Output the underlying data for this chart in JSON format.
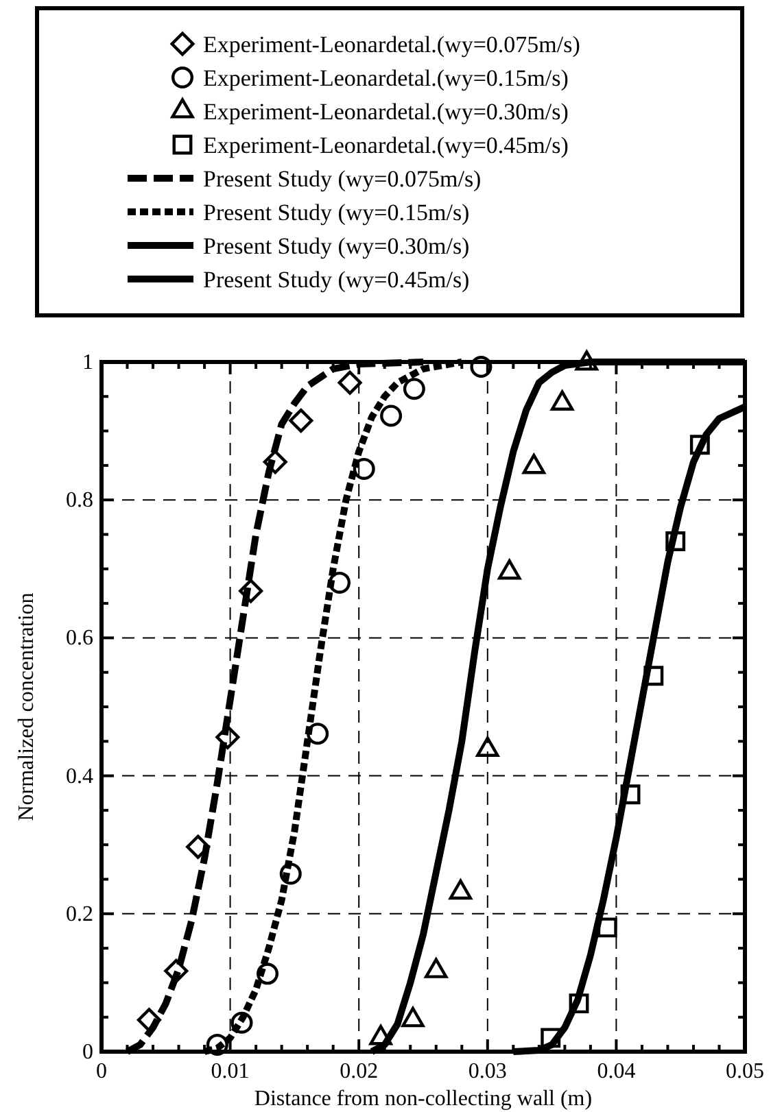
{
  "chart_data": {
    "type": "scatter",
    "xlabel": "Distance from non-collecting wall (m)",
    "ylabel": "Normalized concentration",
    "xlim": [
      0,
      0.05
    ],
    "ylim": [
      0,
      1
    ],
    "xticks": [
      0,
      {
        "value": 0.002,
        "label": null
      },
      {
        "value": 0.004,
        "label": null
      },
      {
        "value": 0.006,
        "label": null
      },
      {
        "value": 0.008,
        "label": null
      },
      0.01,
      {
        "value": 0.012,
        "label": null
      },
      {
        "value": 0.014,
        "label": null
      },
      {
        "value": 0.016,
        "label": null
      },
      {
        "value": 0.018,
        "label": null
      },
      0.02,
      {
        "value": 0.022,
        "label": null
      },
      {
        "value": 0.024,
        "label": null
      },
      {
        "value": 0.026,
        "label": null
      },
      {
        "value": 0.028,
        "label": null
      },
      0.03,
      {
        "value": 0.032,
        "label": null
      },
      {
        "value": 0.034,
        "label": null
      },
      {
        "value": 0.036,
        "label": null
      },
      {
        "value": 0.038,
        "label": null
      },
      0.04,
      {
        "value": 0.042,
        "label": null
      },
      {
        "value": 0.044,
        "label": null
      },
      {
        "value": 0.046,
        "label": null
      },
      {
        "value": 0.048,
        "label": null
      },
      0.05
    ],
    "yticks": [
      0,
      {
        "value": 0.05,
        "label": null
      },
      {
        "value": 0.1,
        "label": null
      },
      {
        "value": 0.15,
        "label": null
      },
      0.2,
      {
        "value": 0.25,
        "label": null
      },
      {
        "value": 0.3,
        "label": null
      },
      {
        "value": 0.35,
        "label": null
      },
      0.4,
      {
        "value": 0.45,
        "label": null
      },
      {
        "value": 0.5,
        "label": null
      },
      {
        "value": 0.55,
        "label": null
      },
      0.6,
      {
        "value": 0.65,
        "label": null
      },
      {
        "value": 0.7,
        "label": null
      },
      {
        "value": 0.75,
        "label": null
      },
      0.8,
      {
        "value": 0.85,
        "label": null
      },
      {
        "value": 0.9,
        "label": null
      },
      {
        "value": 0.95,
        "label": null
      },
      1
    ],
    "grid": true,
    "legend": "top",
    "series": [
      {
        "name": "Experiment-Leonardetal.(wy=0.075m/s)",
        "marker": "diamond",
        "color": "#000000",
        "x": [
          0.0037,
          0.0058,
          0.0075,
          0.0098,
          0.0116,
          0.0135,
          0.0155,
          0.0193
        ],
        "values": [
          0.046,
          0.117,
          0.297,
          0.456,
          0.668,
          0.855,
          0.915,
          0.97
        ]
      },
      {
        "name": "Experiment-Leonardetal.(wy=0.15m/s)",
        "marker": "circle",
        "color": "#000000",
        "x": [
          0.009,
          0.0109,
          0.0129,
          0.0147,
          0.0168,
          0.0185,
          0.0204,
          0.0225,
          0.0243,
          0.0295
        ],
        "values": [
          0.01,
          0.042,
          0.113,
          0.258,
          0.461,
          0.68,
          0.845,
          0.922,
          0.961,
          0.993
        ]
      },
      {
        "name": "Experiment-Leonardetal.(wy=0.30m/s)",
        "marker": "triangle",
        "color": "#000000",
        "x": [
          0.0217,
          0.0242,
          0.026,
          0.0279,
          0.03,
          0.0317,
          0.0336,
          0.0358,
          0.0377
        ],
        "values": [
          0.02,
          0.046,
          0.117,
          0.231,
          0.438,
          0.695,
          0.848,
          0.94,
          0.998
        ]
      },
      {
        "name": "Experiment-Leonardetal.(wy=0.45m/s)",
        "marker": "square",
        "color": "#000000",
        "x": [
          0.0349,
          0.0371,
          0.0393,
          0.0411,
          0.0429,
          0.0446,
          0.0465
        ],
        "values": [
          0.02,
          0.07,
          0.18,
          0.373,
          0.545,
          0.74,
          0.88
        ]
      },
      {
        "name": "Present Study (wy=0.075m/s)",
        "type": "line",
        "line_style": "dashed",
        "color": "#000000",
        "x": [
          0.002,
          0.003,
          0.004,
          0.005,
          0.006,
          0.007,
          0.008,
          0.009,
          0.01,
          0.011,
          0.012,
          0.013,
          0.014,
          0.015,
          0.016,
          0.018,
          0.02,
          0.025
        ],
        "values": [
          0,
          0.01,
          0.035,
          0.07,
          0.12,
          0.19,
          0.28,
          0.39,
          0.51,
          0.63,
          0.75,
          0.84,
          0.91,
          0.94,
          0.965,
          0.99,
          0.997,
          1
        ]
      },
      {
        "name": "Present Study (wy=0.15m/s)",
        "type": "line",
        "line_style": "dotted",
        "color": "#000000",
        "x": [
          0.008,
          0.009,
          0.01,
          0.011,
          0.012,
          0.013,
          0.014,
          0.015,
          0.016,
          0.017,
          0.018,
          0.019,
          0.02,
          0.021,
          0.022,
          0.023,
          0.025,
          0.028
        ],
        "values": [
          0,
          0.005,
          0.02,
          0.05,
          0.09,
          0.15,
          0.22,
          0.32,
          0.45,
          0.58,
          0.7,
          0.8,
          0.87,
          0.92,
          0.95,
          0.97,
          0.99,
          1
        ]
      },
      {
        "name": "Present Study (wy=0.30m/s)",
        "type": "line",
        "line_style": "solid",
        "color": "#000000",
        "x": [
          0.021,
          0.022,
          0.023,
          0.024,
          0.025,
          0.026,
          0.027,
          0.028,
          0.029,
          0.03,
          0.031,
          0.032,
          0.033,
          0.034,
          0.035,
          0.036,
          0.038,
          0.05
        ],
        "values": [
          0,
          0.01,
          0.04,
          0.1,
          0.17,
          0.26,
          0.35,
          0.45,
          0.58,
          0.7,
          0.79,
          0.87,
          0.93,
          0.97,
          0.985,
          0.995,
          1,
          1
        ]
      },
      {
        "name": "Present Study (wy=0.45m/s)",
        "type": "line",
        "line_style": "solid",
        "color": "#000000",
        "x": [
          0.032,
          0.034,
          0.035,
          0.036,
          0.037,
          0.038,
          0.039,
          0.04,
          0.041,
          0.042,
          0.043,
          0.044,
          0.045,
          0.046,
          0.047,
          0.048,
          0.05
        ],
        "values": [
          0,
          0.002,
          0.01,
          0.035,
          0.075,
          0.14,
          0.22,
          0.31,
          0.41,
          0.51,
          0.61,
          0.71,
          0.79,
          0.855,
          0.895,
          0.918,
          0.935
        ]
      }
    ]
  }
}
